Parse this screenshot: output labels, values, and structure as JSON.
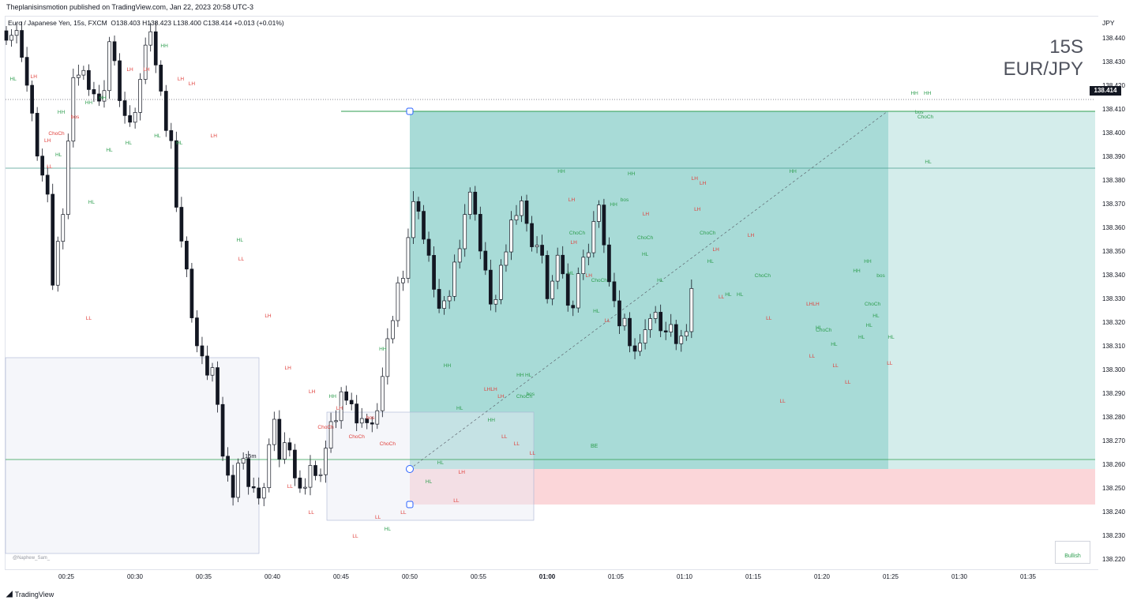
{
  "header": {
    "published_by": "Theplanisinsmotion published on TradingView.com, Jan 22, 2023 20:58 UTC-3"
  },
  "legend": {
    "symbol": "Euro / Japanese Yen, 15s, FXCM",
    "ohlc": "O138.403  H138.423  L138.400  C138.414  +0.013 (+0.01%)"
  },
  "watermark": {
    "line1": "15S",
    "line2": "EUR/JPY"
  },
  "axis": {
    "currency": "JPY",
    "last_price": "138.414"
  },
  "labels": {
    "be": "BE",
    "timeframe": "15m",
    "bullish": "Bullish",
    "credit": "@Naphew_Sam_"
  },
  "footer": {
    "logo_text": "TradingView"
  },
  "colors": {
    "up": "#ffffff",
    "down": "#131722",
    "target_zone": "#26a69a",
    "stop_zone": "#f7b5ba",
    "hh_hl": "#2e9e4f",
    "lh_ll": "#e0403c"
  },
  "chart_data": {
    "type": "candlestick",
    "title": "15S EUR/JPY",
    "xlabel": "",
    "ylabel": "",
    "ylim": [
      138.214,
      138.444
    ],
    "y_ticks": [
      "138.220",
      "138.230",
      "138.240",
      "138.250",
      "138.260",
      "138.270",
      "138.280",
      "138.290",
      "138.300",
      "138.310",
      "138.320",
      "138.330",
      "138.340",
      "138.350",
      "138.360",
      "138.370",
      "138.380",
      "138.390",
      "138.400",
      "138.410",
      "138.420",
      "138.430",
      "138.440"
    ],
    "x_ticks": [
      "00:25",
      "00:30",
      "00:35",
      "00:40",
      "00:45",
      "00:50",
      "00:55",
      "01:00",
      "01:05",
      "01:10",
      "01:15",
      "01:20",
      "01:25",
      "01:30",
      "01:35"
    ],
    "close_path": [
      [
        0,
        138.443
      ],
      [
        2,
        138.44
      ],
      [
        3,
        138.42
      ],
      [
        4,
        138.4
      ],
      [
        5,
        138.385
      ],
      [
        6,
        138.37
      ],
      [
        6.8,
        138.335
      ],
      [
        7.6,
        138.355
      ],
      [
        8.5,
        138.375
      ],
      [
        9.4,
        138.415
      ],
      [
        10,
        138.425
      ],
      [
        11,
        138.43
      ],
      [
        12,
        138.415
      ],
      [
        13,
        138.42
      ],
      [
        14,
        138.405
      ],
      [
        15,
        138.44
      ],
      [
        16,
        138.425
      ],
      [
        17,
        138.41
      ],
      [
        18,
        138.402
      ],
      [
        19,
        138.415
      ],
      [
        20,
        138.43
      ],
      [
        21,
        138.445
      ],
      [
        22,
        138.422
      ],
      [
        23,
        138.405
      ],
      [
        24,
        138.395
      ],
      [
        25,
        138.365
      ],
      [
        26,
        138.345
      ],
      [
        27,
        138.325
      ],
      [
        28,
        138.305
      ],
      [
        29,
        138.3
      ],
      [
        30,
        138.3
      ],
      [
        31,
        138.275
      ],
      [
        32,
        138.255
      ],
      [
        33,
        138.25
      ],
      [
        34,
        138.265
      ],
      [
        35,
        138.255
      ],
      [
        36,
        138.25
      ],
      [
        37,
        138.24
      ],
      [
        38,
        138.265
      ],
      [
        39,
        138.275
      ],
      [
        40,
        138.26
      ],
      [
        41,
        138.275
      ],
      [
        42,
        138.255
      ],
      [
        43,
        138.245
      ],
      [
        44,
        138.262
      ],
      [
        45,
        138.252
      ],
      [
        46,
        138.26
      ],
      [
        47,
        138.272
      ],
      [
        48,
        138.28
      ],
      [
        49,
        138.292
      ],
      [
        50,
        138.29
      ],
      [
        51,
        138.275
      ],
      [
        52,
        138.285
      ],
      [
        53,
        138.27
      ],
      [
        54,
        138.285
      ],
      [
        55,
        138.3
      ],
      [
        56,
        138.318
      ],
      [
        57,
        138.335
      ],
      [
        58,
        138.345
      ],
      [
        59,
        138.368
      ],
      [
        60,
        138.37
      ],
      [
        61,
        138.35
      ],
      [
        62,
        138.34
      ],
      [
        63,
        138.325
      ],
      [
        64,
        138.325
      ],
      [
        65,
        138.34
      ],
      [
        66,
        138.355
      ],
      [
        67,
        138.37
      ],
      [
        68,
        138.375
      ],
      [
        69,
        138.35
      ],
      [
        70,
        138.335
      ],
      [
        71,
        138.325
      ],
      [
        72,
        138.34
      ],
      [
        73,
        138.355
      ],
      [
        74,
        138.368
      ],
      [
        75,
        138.372
      ],
      [
        76,
        138.355
      ],
      [
        77,
        138.355
      ],
      [
        78,
        138.345
      ],
      [
        79,
        138.328
      ],
      [
        80,
        138.345
      ],
      [
        81,
        138.342
      ],
      [
        82,
        138.32
      ],
      [
        83,
        138.34
      ],
      [
        84,
        138.345
      ],
      [
        85,
        138.355
      ],
      [
        86,
        138.37
      ],
      [
        87,
        138.355
      ],
      [
        88,
        138.33
      ],
      [
        89,
        138.32
      ],
      [
        90,
        138.32
      ],
      [
        91,
        138.312
      ],
      [
        92,
        138.305
      ],
      [
        93,
        138.32
      ],
      [
        94,
        138.322
      ],
      [
        95,
        138.32
      ],
      [
        96,
        138.315
      ],
      [
        97,
        138.315
      ],
      [
        98,
        138.31
      ],
      [
        99,
        138.32
      ],
      [
        100,
        138.34
      ],
      [
        101,
        138.36
      ],
      [
        102,
        138.4
      ],
      [
        103,
        138.405
      ],
      [
        104,
        138.41
      ],
      [
        105,
        138.414
      ]
    ],
    "trade": {
      "entry": 138.258,
      "target": 138.409,
      "stop": 138.243,
      "levels": [
        138.385,
        138.262,
        138.414
      ]
    },
    "structure_labels": {
      "types": [
        "HH",
        "HL",
        "LH",
        "LL",
        "bos",
        "ChoCh"
      ],
      "markers": [
        [
          "LH",
          4,
          138.423
        ],
        [
          "HL",
          1,
          138.422
        ],
        [
          "HH",
          8,
          138.408
        ],
        [
          "LH",
          6,
          138.396
        ],
        [
          "ChoCh",
          7.3,
          138.399
        ],
        [
          "LL",
          6.3,
          138.385
        ],
        [
          "HL",
          7.6,
          138.39
        ],
        [
          "HH",
          12,
          138.412
        ],
        [
          "bos",
          10,
          138.406
        ],
        [
          "HL",
          12.4,
          138.37
        ],
        [
          "HH",
          14,
          138.414
        ],
        [
          "HL",
          15,
          138.392
        ],
        [
          "LH",
          18,
          138.426
        ],
        [
          "LH",
          20.4,
          138.426
        ],
        [
          "HL",
          17.8,
          138.395
        ],
        [
          "HH",
          23,
          138.436
        ],
        [
          "HL",
          22,
          138.398
        ],
        [
          "LH",
          25.4,
          138.422
        ],
        [
          "LH",
          27,
          138.42
        ],
        [
          "HL",
          25.2,
          138.395
        ],
        [
          "LH",
          30.2,
          138.398
        ],
        [
          "HL",
          34,
          138.354
        ],
        [
          "LL",
          12,
          138.321
        ],
        [
          "LL",
          34.2,
          138.346
        ],
        [
          "LH",
          38.1,
          138.322
        ],
        [
          "LH",
          41,
          138.3
        ],
        [
          "LH",
          44.5,
          138.29
        ],
        [
          "HH",
          47.5,
          138.288
        ],
        [
          "ChoCh",
          46.5,
          138.275
        ],
        [
          "LL",
          41.3,
          138.25
        ],
        [
          "LL",
          44.4,
          138.239
        ],
        [
          "LH",
          48.5,
          138.283
        ],
        [
          "ChoCh",
          51,
          138.271
        ],
        [
          "HH",
          54.8,
          138.308
        ],
        [
          "bos",
          53,
          138.279
        ],
        [
          "ChoCh",
          55.5,
          138.268
        ],
        [
          "LL",
          54.1,
          138.237
        ],
        [
          "LL",
          50.8,
          138.229
        ],
        [
          "HL",
          55.5,
          138.232
        ],
        [
          "LL",
          57.8,
          138.239
        ],
        [
          "HH",
          64.2,
          138.301
        ],
        [
          "HL",
          63.2,
          138.26
        ],
        [
          "HL",
          61.5,
          138.252
        ],
        [
          "LL",
          65.5,
          138.244
        ],
        [
          "LH",
          66.3,
          138.256
        ],
        [
          "HH",
          70.6,
          138.278
        ],
        [
          "HL",
          66,
          138.283
        ],
        [
          "LH",
          72,
          138.288
        ],
        [
          "LHLH",
          70.5,
          138.291
        ],
        [
          "HH",
          74.8,
          138.297
        ],
        [
          "LL",
          72.5,
          138.271
        ],
        [
          "HL",
          76,
          138.297
        ],
        [
          "LL",
          74.3,
          138.268
        ],
        [
          "bos",
          76.3,
          138.289
        ],
        [
          "ChoCh",
          75.4,
          138.288
        ],
        [
          "LL",
          76.6,
          138.264
        ],
        [
          "HH",
          80.8,
          138.383
        ],
        [
          "LH",
          82.3,
          138.371
        ],
        [
          "LH",
          82.6,
          138.353
        ],
        [
          "ChoCh",
          83.1,
          138.357
        ],
        [
          "HL",
          82.2,
          138.34
        ],
        [
          "LH",
          84.8,
          138.339
        ],
        [
          "ChoCh",
          86.3,
          138.337
        ],
        [
          "HL",
          85.9,
          138.324
        ],
        [
          "LL",
          87.5,
          138.32
        ],
        [
          "HH",
          88.4,
          138.369
        ],
        [
          "bos",
          90,
          138.371
        ],
        [
          "HH",
          91,
          138.382
        ],
        [
          "LH",
          93.1,
          138.365
        ],
        [
          "ChoCh",
          93,
          138.355
        ],
        [
          "HL",
          93,
          138.348
        ],
        [
          "HL",
          95.2,
          138.337
        ],
        [
          "LH",
          100.2,
          138.38
        ],
        [
          "LH",
          101.4,
          138.378
        ],
        [
          "LH",
          100.6,
          138.367
        ],
        [
          "ChoCh",
          102.1,
          138.357
        ],
        [
          "HL",
          102.5,
          138.345
        ],
        [
          "LH",
          103.3,
          138.35
        ],
        [
          "LL",
          104.1,
          138.33
        ],
        [
          "HL",
          105.1,
          138.331
        ],
        [
          "LH",
          108.4,
          138.356
        ],
        [
          "ChoCh",
          110.1,
          138.339
        ],
        [
          "HL",
          106.8,
          138.331
        ],
        [
          "LL",
          111,
          138.321
        ],
        [
          "HH",
          114.5,
          138.383
        ],
        [
          "LL",
          113,
          138.286
        ],
        [
          "LHLH",
          117.4,
          138.327
        ],
        [
          "HL",
          118.3,
          138.317
        ],
        [
          "ChoCh",
          119,
          138.316
        ],
        [
          "LL",
          117.3,
          138.305
        ],
        [
          "HL",
          120.5,
          138.31
        ],
        [
          "LL",
          120.7,
          138.301
        ],
        [
          "LL",
          122.5,
          138.294
        ],
        [
          "HH",
          123.8,
          138.341
        ],
        [
          "HH",
          125.4,
          138.345
        ],
        [
          "bos",
          127.3,
          138.339
        ],
        [
          "ChoCh",
          126.1,
          138.327
        ],
        [
          "HL",
          125.6,
          138.318
        ],
        [
          "HL",
          126.6,
          138.322
        ],
        [
          "HL",
          124.5,
          138.313
        ],
        [
          "HL",
          128.8,
          138.313
        ],
        [
          "LL",
          128.6,
          138.302
        ],
        [
          "HH",
          132.2,
          138.416
        ],
        [
          "HH",
          134.1,
          138.416
        ],
        [
          "ChoCh",
          133.8,
          138.406
        ],
        [
          "bos",
          132.9,
          138.408
        ],
        [
          "HL",
          134.2,
          138.387
        ]
      ]
    }
  }
}
